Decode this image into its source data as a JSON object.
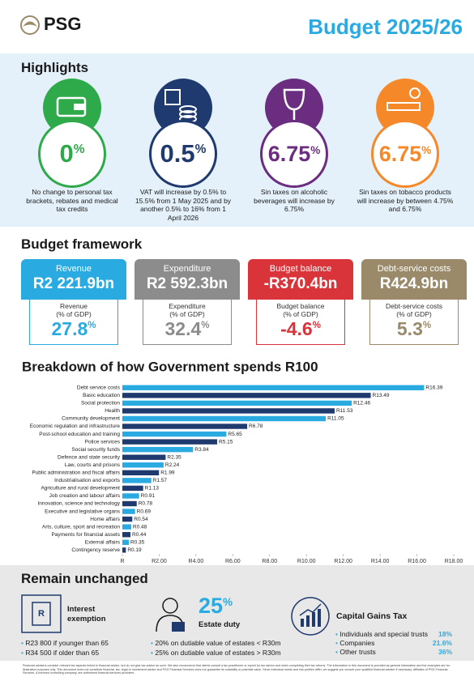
{
  "header": {
    "logo": "PSG",
    "title": "Budget 2025/26"
  },
  "highlights": {
    "title": "Highlights",
    "items": [
      {
        "value": "0",
        "unit": "%",
        "text": "No change to personal tax brackets, rebates and medical tax credits",
        "color": "#2eaa4a"
      },
      {
        "value": "0.5",
        "unit": "%",
        "text": "VAT will increase by 0.5% to 15.5% from 1 May 2025 and by another 0.5% to 16% from 1 April 2026",
        "color": "#1f3a6e"
      },
      {
        "value": "6.75",
        "unit": "%",
        "text": "Sin taxes on alcoholic beverages will increase by 6.75%",
        "color": "#6b2d7f"
      },
      {
        "value": "6.75",
        "unit": "%",
        "text": "Sin taxes on tobacco products will increase by between 4.75% and 6.75%",
        "color": "#f5892a"
      }
    ]
  },
  "framework": {
    "title": "Budget framework",
    "cards": [
      {
        "title": "Revenue",
        "amount": "R2 221.9bn",
        "label": "Revenue",
        "sublabel": "(% of GDP)",
        "value": "27.8",
        "unit": "%",
        "color": "#29abe2"
      },
      {
        "title": "Expenditure",
        "amount": "R2 592.3bn",
        "label": "Expenditure",
        "sublabel": "(% of GDP)",
        "value": "32.4",
        "unit": "%",
        "color": "#8c8c8c"
      },
      {
        "title": "Budget balance",
        "amount": "-R370.4bn",
        "label": "Budget balance",
        "sublabel": "(% of GDP)",
        "value": "-4.6",
        "unit": "%",
        "color": "#d9343a"
      },
      {
        "title": "Debt-service costs",
        "amount": "R424.9bn",
        "label": "Debt-service costs",
        "sublabel": "(% of GDP)",
        "value": "5.3",
        "unit": "%",
        "color": "#9a8a6a"
      }
    ]
  },
  "chart_data": {
    "type": "hbar",
    "title": "Breakdown of how Government spends R100",
    "categories": [
      "Debt service costs",
      "Basic education",
      "Social protection",
      "Health",
      "Community development",
      "Economic regulation and infrastructure",
      "Post-school education and training",
      "Police services",
      "Social security funds",
      "Defence and state security",
      "Law, courts and prisons",
      "Public administration and fiscal affairs",
      "Industrialisation and exports",
      "Agriculture and rural development",
      "Job creation and labour affairs",
      "Innovation, science and technology",
      "Executive and legislative organs",
      "Home affairs",
      "Arts, culture, sport and recreation",
      "Payments for financial assets",
      "External affairs",
      "Contingency reserve"
    ],
    "values": [
      16.39,
      13.49,
      12.46,
      11.53,
      11.05,
      6.78,
      5.65,
      5.15,
      3.84,
      2.35,
      2.24,
      1.99,
      1.57,
      1.13,
      0.91,
      0.78,
      0.69,
      0.54,
      0.48,
      0.44,
      0.35,
      0.19
    ],
    "value_labels": [
      "R16.39",
      "R13.49",
      "R12.46",
      "R11.53",
      "R11.05",
      "R6.78",
      "R5.65",
      "R5.15",
      "R3.84",
      "R2.35",
      "R2.24",
      "R1.99",
      "R1.57",
      "R1.13",
      "R0.91",
      "R0.78",
      "R0.69",
      "R0.54",
      "R0.48",
      "R0.44",
      "R0.35",
      "R0.19"
    ],
    "colors": [
      "#29abe2",
      "#1f3a6e",
      "#29abe2",
      "#1f3a6e",
      "#29abe2",
      "#1f3a6e",
      "#29abe2",
      "#1f3a6e",
      "#29abe2",
      "#1f3a6e",
      "#29abe2",
      "#1f3a6e",
      "#29abe2",
      "#1f3a6e",
      "#29abe2",
      "#1f3a6e",
      "#29abe2",
      "#1f3a6e",
      "#29abe2",
      "#1f3a6e",
      "#29abe2",
      "#1f3a6e"
    ],
    "xlim": [
      0,
      18
    ],
    "xticks": [
      {
        "value": 0,
        "label": "R"
      },
      {
        "value": 2,
        "label": "R2.00"
      },
      {
        "value": 4,
        "label": "R4.00"
      },
      {
        "value": 6,
        "label": "R6.00"
      },
      {
        "value": 8,
        "label": "R8.00"
      },
      {
        "value": 10,
        "label": "R10.00"
      },
      {
        "value": 12,
        "label": "R12.00"
      },
      {
        "value": 14,
        "label": "R14.00"
      },
      {
        "value": 16,
        "label": "R16.00"
      },
      {
        "value": 18,
        "label": "R18.00"
      }
    ]
  },
  "unchanged": {
    "title": "Remain unchanged",
    "interest": {
      "title": "Interest exemption",
      "bullets": [
        "R23 800 if younger than 65",
        "R34 500 if older than 65"
      ]
    },
    "estate": {
      "value": "25",
      "unit": "%",
      "title": "Estate duty",
      "bullets": [
        "20% on dutiable value of estates < R30m",
        "25% on dutiable value of estates > R30m"
      ]
    },
    "cgt": {
      "title": "Capital Gains Tax",
      "rows": [
        {
          "label": "Individuals and special trusts",
          "value": "18%"
        },
        {
          "label": "Companies",
          "value": "21.6%"
        },
        {
          "label": "Other trusts",
          "value": "36%"
        }
      ]
    }
  },
  "footer": "Financial advisers consider relevant tax aspects linked to financial advice, but do not give tax advice as such. We also recommend that clients consult a tax practitioner or expert for tax advice and when completing their tax returns. The information in this document is provided as general information and the examples are for illustrative purposes only. This document does not constitute financial, tax, legal or investment advice and PSG Financial Services does not guarantee its suitability or potential value. Since individual needs and risk profiles differ, we suggest you consult your qualified financial adviser if necessary. Affiliates of PSG Financial Services, a licensed controlling company, are authorised financial services providers."
}
